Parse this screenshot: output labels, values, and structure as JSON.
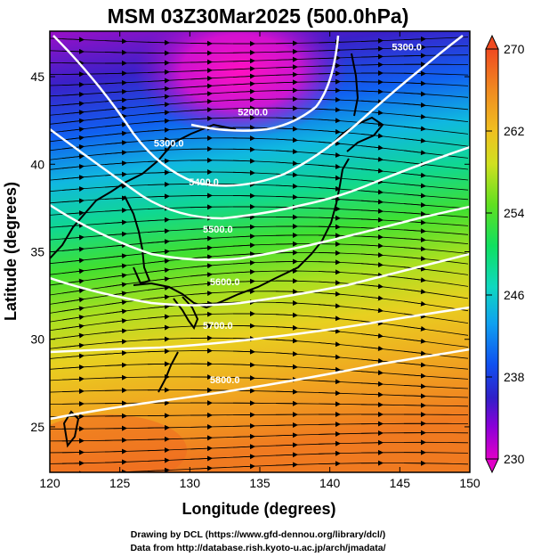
{
  "title": "MSM 03Z30Mar2025 (500.0hPa)",
  "credits": [
    "Drawing by DCL (https://www.gfd-dennou.org/library/dcl/)",
    "Data from http://database.rish.kyoto-u.ac.jp/arch/jmadata/"
  ],
  "map": {
    "xlabel": "Longitude (degrees)",
    "ylabel": "Latitude  (degrees)",
    "lon_range": [
      120,
      150
    ],
    "lat_range": [
      22.4,
      47.6
    ],
    "lon_ticks": [
      120,
      125,
      130,
      135,
      140,
      145,
      150
    ],
    "lat_ticks": [
      25,
      30,
      35,
      40,
      45
    ],
    "lon_tick_labels": [
      "120",
      "125",
      "130",
      "135",
      "140",
      "145",
      "150"
    ],
    "lat_tick_labels": [
      "25",
      "30",
      "35",
      "40",
      "45"
    ]
  },
  "colorbar": {
    "min": 230,
    "max": 270,
    "tick_labels": [
      "270",
      "262",
      "254",
      "246",
      "238",
      "230"
    ],
    "tick_values": [
      270,
      262,
      254,
      246,
      238,
      230
    ]
  },
  "contours": [
    {
      "label": "5300.0",
      "label_lon": 128.5,
      "label_lat": 41.0,
      "label2": "5300.0",
      "label2_lon": 145.5,
      "label2_lat": 46.5
    },
    {
      "label": "5200.0",
      "label_lon": 134.5,
      "label_lat": 42.8
    },
    {
      "label": "5400.0",
      "label_lon": 131.0,
      "label_lat": 38.8
    },
    {
      "label": "5500.0",
      "label_lon": 132.0,
      "label_lat": 36.1
    },
    {
      "label": "5600.0",
      "label_lon": 132.5,
      "label_lat": 33.1
    },
    {
      "label": "5700.0",
      "label_lon": 132.0,
      "label_lat": 30.6
    },
    {
      "label": "5800.0",
      "label_lon": 132.5,
      "label_lat": 27.5
    }
  ],
  "colors": {
    "contour": "#ffffff",
    "streamline": "#000000",
    "coast": "#000000"
  }
}
